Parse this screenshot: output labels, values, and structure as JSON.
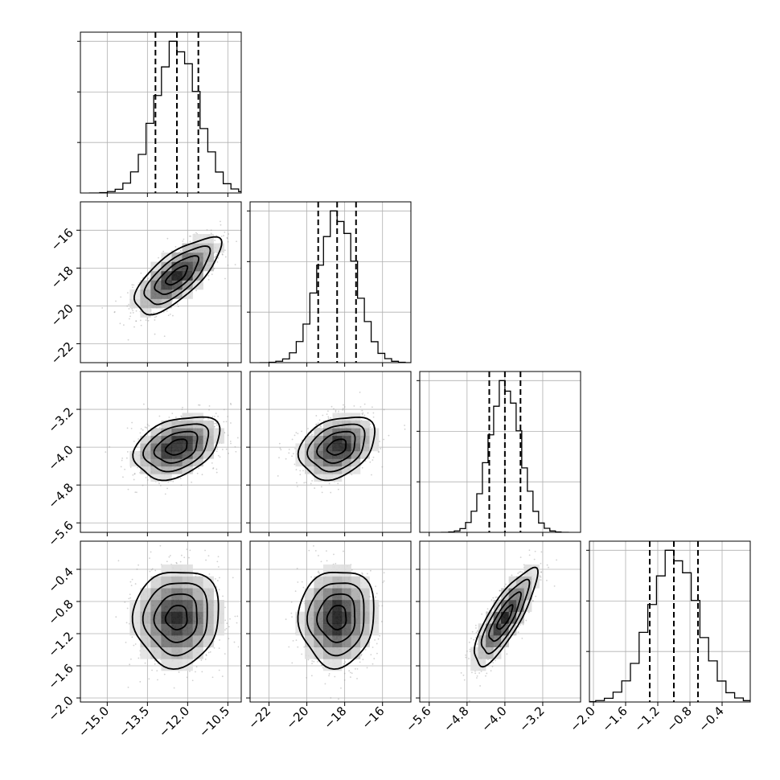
{
  "chart_data": {
    "type": "corner",
    "title": "",
    "parameters": [
      {
        "name": "",
        "mean": -12.4,
        "std": 0.8,
        "range": [
          -16.0,
          -10.0
        ],
        "ticks": [
          -15.0,
          -13.5,
          -12.0,
          -10.5
        ],
        "tick_labels": [
          "−15.0",
          "−13.5",
          "−12.0",
          "−10.5"
        ],
        "quantiles": [
          -13.2,
          -12.4,
          -11.6
        ]
      },
      {
        "name": "",
        "mean": -18.4,
        "std": 1.0,
        "range": [
          -23.0,
          -14.5
        ],
        "ticks": [
          -22,
          -20,
          -18,
          -16
        ],
        "tick_labels": [
          "−22",
          "−20",
          "−18",
          "−16"
        ],
        "quantiles": [
          -19.4,
          -18.4,
          -17.4
        ]
      },
      {
        "name": "",
        "mean": -4.0,
        "std": 0.33,
        "range": [
          -5.8,
          -2.4
        ],
        "ticks": [
          -5.6,
          -4.8,
          -4.0,
          -3.2
        ],
        "tick_labels": [
          "−5.6",
          "−4.8",
          "−4.0",
          "−3.2"
        ],
        "quantiles": [
          -4.33,
          -4.0,
          -3.67
        ]
      },
      {
        "name": "",
        "mean": -1.0,
        "std": 0.3,
        "range": [
          -2.05,
          -0.05
        ],
        "ticks": [
          -2.0,
          -1.6,
          -1.2,
          -0.8,
          -0.4
        ],
        "tick_labels": [
          "−2.0",
          "−1.6",
          "−1.2",
          "−0.8",
          "−0.4"
        ],
        "quantiles": [
          -1.3,
          -1.0,
          -0.7
        ]
      }
    ],
    "correlations": [
      {
        "x": 0,
        "y": 1,
        "rho": 0.72
      },
      {
        "x": 0,
        "y": 2,
        "rho": 0.35
      },
      {
        "x": 1,
        "y": 2,
        "rho": 0.3
      },
      {
        "x": 0,
        "y": 3,
        "rho": 0.05
      },
      {
        "x": 1,
        "y": 3,
        "rho": 0.05
      },
      {
        "x": 2,
        "y": 3,
        "rho": 0.82
      }
    ],
    "contour_levels_sigma": [
      0.5,
      1.0,
      1.5,
      2.0
    ],
    "histogram_bins": 20,
    "quantile_style": "dashed",
    "grid": true
  }
}
